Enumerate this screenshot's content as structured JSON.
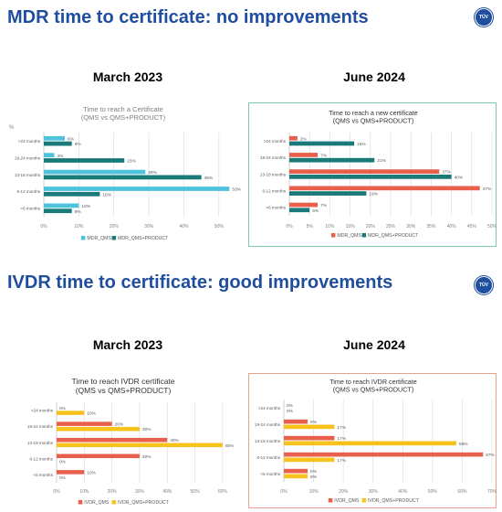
{
  "mdr_section": {
    "title": "MDR time to certificate: no improvements",
    "left_period": "March 2023",
    "right_period": "June 2024"
  },
  "ivdr_section": {
    "title": "IVDR time to certificate: good improvements",
    "left_period": "March 2023",
    "right_period": "June 2024"
  },
  "logo": {
    "text": "TÜV"
  },
  "chart_data": [
    {
      "id": "mdr-2023",
      "type": "bar",
      "orientation": "horizontal",
      "title": "Time to reach a Certificate",
      "subtitle": "(QMS vs QMS+PRODUCT)",
      "unit_label": "%",
      "categories": [
        ">24 months",
        "19-24 months",
        "13-18 months",
        "6-12 months",
        "<6 months"
      ],
      "series": [
        {
          "name": "MDR_QMS",
          "color": "#4fc3dc",
          "values": [
            6,
            3,
            29,
            53,
            10
          ]
        },
        {
          "name": "MDR_QMS+PRODUCT",
          "color": "#1a7a7a",
          "values": [
            8,
            23,
            45,
            16,
            8
          ]
        }
      ],
      "data_labels": [
        [
          "6%",
          "3%",
          "29%",
          "53%",
          "10%"
        ],
        [
          "8%",
          "23%",
          "45%",
          "16%",
          "8%"
        ]
      ],
      "xlim": [
        0,
        55
      ],
      "xticks": [
        0,
        10,
        20,
        30,
        40,
        50
      ],
      "xtick_labels": [
        "0%",
        "10%",
        "20%",
        "30%",
        "40%",
        "50%"
      ],
      "grid": true,
      "legend": "bottom"
    },
    {
      "id": "mdr-2024",
      "type": "bar",
      "orientation": "horizontal",
      "title": "Time to reach a new certificate",
      "subtitle": "(QMS vs QMS+PRODUCT)",
      "categories": [
        ">24 months",
        "19-24 months",
        "13-18 months",
        "6-12 months",
        "<6 months"
      ],
      "series": [
        {
          "name": "MDR_QMS",
          "color": "#e8604c",
          "values": [
            2,
            7,
            37,
            47,
            7
          ]
        },
        {
          "name": "MDR_QMS+PRODUCT",
          "color": "#1a7a7a",
          "values": [
            16,
            21,
            40,
            19,
            5
          ]
        }
      ],
      "data_labels": [
        [
          "2%",
          "7%",
          "37%",
          "47%",
          "7%"
        ],
        [
          "16%",
          "21%",
          "40%",
          "19%",
          "5%"
        ]
      ],
      "xlim": [
        0,
        50
      ],
      "xticks": [
        0,
        5,
        10,
        15,
        20,
        25,
        30,
        35,
        40,
        45,
        50
      ],
      "xtick_labels": [
        "0%",
        "5%",
        "10%",
        "15%",
        "20%",
        "25%",
        "30%",
        "35%",
        "40%",
        "45%",
        "50%"
      ],
      "grid": true,
      "legend": "bottom"
    },
    {
      "id": "ivdr-2023",
      "type": "bar",
      "orientation": "horizontal",
      "title": "Time to reach IVDR certificate",
      "subtitle": "(QMS vs QMS+PRODUCT)",
      "categories": [
        ">24 months",
        "19-24 months",
        "13-18 months",
        "6-12 months",
        "<6 months"
      ],
      "series": [
        {
          "name": "IVDR_QMS",
          "color": "#e8604c",
          "values": [
            0,
            20,
            40,
            30,
            10
          ]
        },
        {
          "name": "IVDR_QMS+PRODUCT",
          "color": "#f7c21b",
          "values": [
            10,
            30,
            60,
            0,
            0
          ]
        }
      ],
      "data_labels": [
        [
          "0%",
          "20%",
          "40%",
          "30%",
          "10%"
        ],
        [
          "10%",
          "30%",
          "60%",
          "0%",
          "0%"
        ]
      ],
      "xlim": [
        0,
        65
      ],
      "xticks": [
        0,
        10,
        20,
        30,
        40,
        50,
        60
      ],
      "xtick_labels": [
        "0%",
        "10%",
        "20%",
        "30%",
        "40%",
        "50%",
        "60%"
      ],
      "grid": true,
      "legend": "bottom"
    },
    {
      "id": "ivdr-2024",
      "type": "bar",
      "orientation": "horizontal",
      "title": "Time to reach IVDR certificate",
      "subtitle": "(QMS vs QMS+PRODUCT)",
      "categories": [
        ">24 months",
        "19-24 months",
        "13-18 months",
        "6-12 months",
        "<6 months"
      ],
      "series": [
        {
          "name": "IVDR_QMS",
          "color": "#e8604c",
          "values": [
            0,
            8,
            17,
            67,
            8
          ]
        },
        {
          "name": "IVDR_QMS+PRODUCT",
          "color": "#f7c21b",
          "values": [
            0,
            17,
            58,
            17,
            8
          ]
        }
      ],
      "data_labels": [
        [
          "0%",
          "8%",
          "17%",
          "67%",
          "8%"
        ],
        [
          "0%",
          "17%",
          "58%",
          "17%",
          "8%"
        ]
      ],
      "xlim": [
        0,
        70
      ],
      "xticks": [
        0,
        10,
        20,
        30,
        40,
        50,
        60,
        70
      ],
      "xtick_labels": [
        "0%",
        "10%",
        "20%",
        "30%",
        "40%",
        "50%",
        "60%",
        "70%"
      ],
      "grid": true,
      "legend": "bottom"
    }
  ]
}
